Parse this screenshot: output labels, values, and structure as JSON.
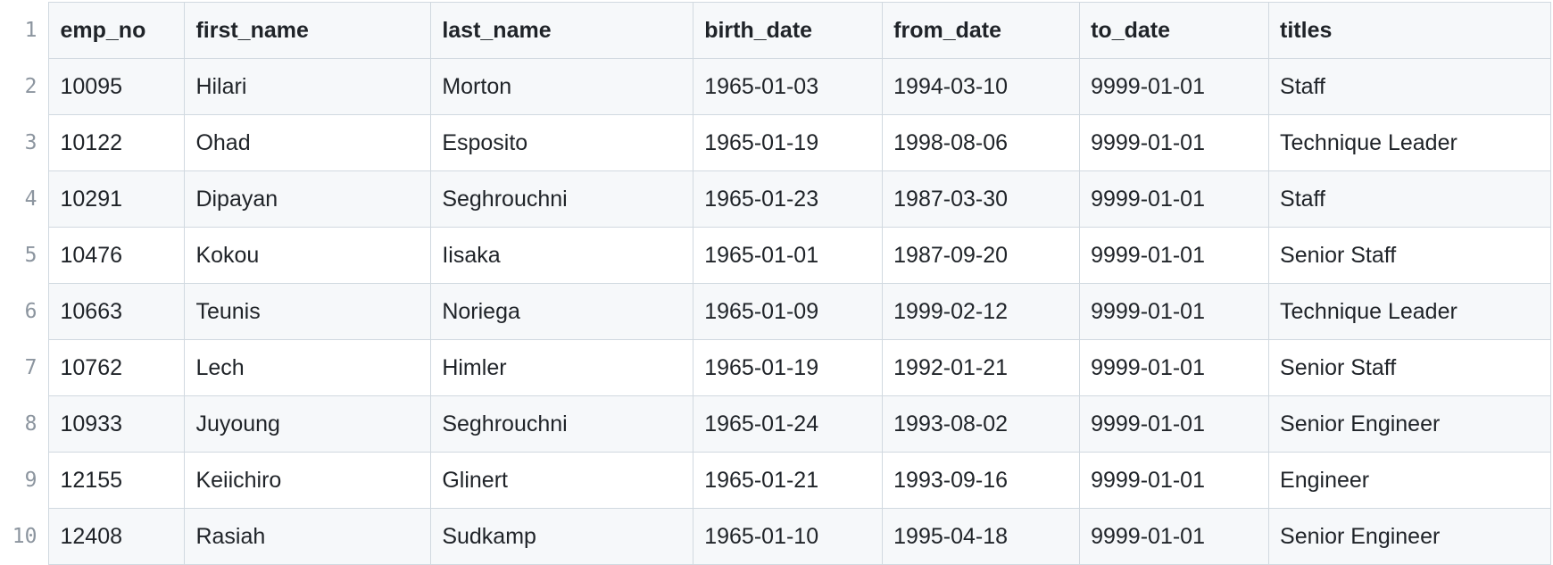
{
  "csv_table": {
    "line_numbers": [
      "1",
      "2",
      "3",
      "4",
      "5",
      "6",
      "7",
      "8",
      "9",
      "10"
    ],
    "columns": [
      "emp_no",
      "first_name",
      "last_name",
      "birth_date",
      "from_date",
      "to_date",
      "titles"
    ],
    "rows": [
      [
        "10095",
        "Hilari",
        "Morton",
        "1965-01-03",
        "1994-03-10",
        "9999-01-01",
        "Staff"
      ],
      [
        "10122",
        "Ohad",
        "Esposito",
        "1965-01-19",
        "1998-08-06",
        "9999-01-01",
        "Technique Leader"
      ],
      [
        "10291",
        "Dipayan",
        "Seghrouchni",
        "1965-01-23",
        "1987-03-30",
        "9999-01-01",
        "Staff"
      ],
      [
        "10476",
        "Kokou",
        "Iisaka",
        "1965-01-01",
        "1987-09-20",
        "9999-01-01",
        "Senior Staff"
      ],
      [
        "10663",
        "Teunis",
        "Noriega",
        "1965-01-09",
        "1999-02-12",
        "9999-01-01",
        "Technique Leader"
      ],
      [
        "10762",
        "Lech",
        "Himler",
        "1965-01-19",
        "1992-01-21",
        "9999-01-01",
        "Senior Staff"
      ],
      [
        "10933",
        "Juyoung",
        "Seghrouchni",
        "1965-01-24",
        "1993-08-02",
        "9999-01-01",
        "Senior Engineer"
      ],
      [
        "12155",
        "Keiichiro",
        "Glinert",
        "1965-01-21",
        "1993-09-16",
        "9999-01-01",
        "Engineer"
      ],
      [
        "12408",
        "Rasiah",
        "Sudkamp",
        "1965-01-10",
        "1995-04-18",
        "9999-01-01",
        "Senior Engineer"
      ]
    ]
  }
}
